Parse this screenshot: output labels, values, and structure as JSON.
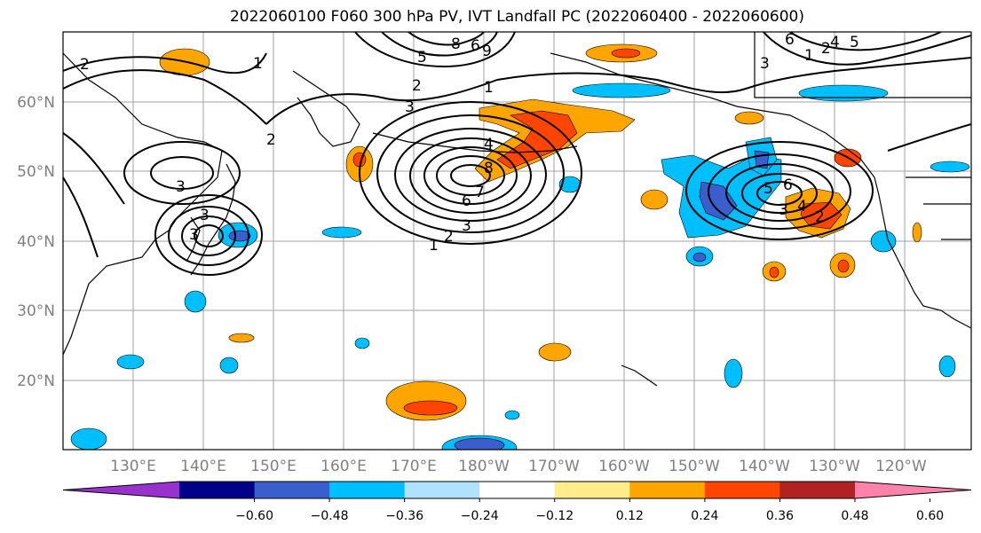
{
  "title": "2022060100 F060 300 hPa PV, IVT Landfall PC (2022060400 - 2022060600)",
  "map": {
    "lon_labels": [
      "130°E",
      "140°E",
      "150°E",
      "160°E",
      "170°E",
      "180°W",
      "170°W",
      "160°W",
      "150°W",
      "140°W",
      "130°W",
      "120°W"
    ],
    "lat_labels": [
      "60°N",
      "50°N",
      "40°N",
      "30°N",
      "20°N"
    ],
    "contour_labels": [
      "1",
      "2",
      "3",
      "1",
      "2",
      "3",
      "4",
      "6",
      "7",
      "8",
      "1",
      "2",
      "3",
      "5",
      "6",
      "8",
      "9",
      "2",
      "3",
      "4",
      "5",
      "6",
      "3",
      "3",
      "2",
      "1",
      "2",
      "3",
      "4",
      "5",
      "6"
    ]
  },
  "colorbar": {
    "tick_labels": [
      "−0.60",
      "−0.48",
      "−0.36",
      "−0.24",
      "−0.12",
      "0.12",
      "0.24",
      "0.36",
      "0.48",
      "0.60"
    ],
    "colors": [
      "#9932cc",
      "#00008b",
      "#3a5fcd",
      "#00bfff",
      "#b0e2ff",
      "#ffffff",
      "#ffec8b",
      "#ffa500",
      "#ff4500",
      "#b22222",
      "#ff82ab"
    ]
  }
}
